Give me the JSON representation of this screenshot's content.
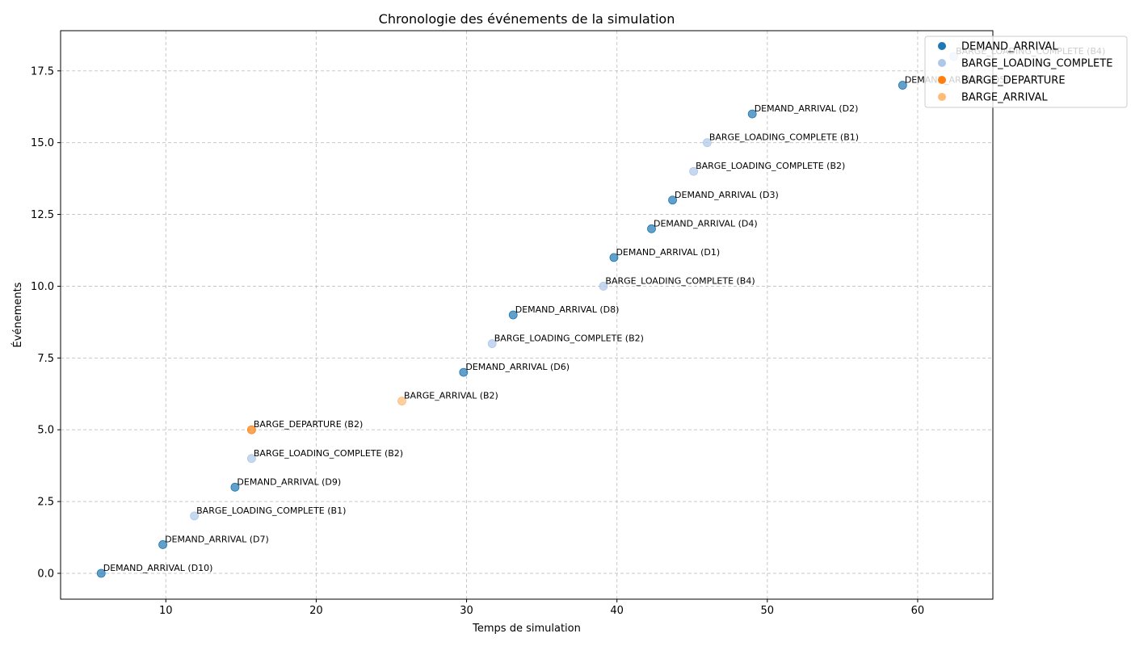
{
  "chart_data": {
    "type": "scatter",
    "title": "Chronologie des événements de la simulation",
    "xlabel": "Temps de simulation",
    "ylabel": "Événements",
    "xlim": [
      3,
      65
    ],
    "ylim": [
      -0.9,
      18.9
    ],
    "xticks": [
      10,
      20,
      30,
      40,
      50,
      60
    ],
    "xtick_labels": [
      "10",
      "20",
      "30",
      "40",
      "50",
      "60"
    ],
    "yticks": [
      0,
      2.5,
      5,
      7.5,
      10,
      12.5,
      15,
      17.5
    ],
    "ytick_labels": [
      "0.0",
      "2.5",
      "5.0",
      "7.5",
      "10.0",
      "12.5",
      "15.0",
      "17.5"
    ],
    "grid": true,
    "legend_position": "top-right",
    "series": [
      {
        "name": "DEMAND_ARRIVAL",
        "color": "#1f77b4"
      },
      {
        "name": "BARGE_LOADING_COMPLETE",
        "color": "#aec7e8"
      },
      {
        "name": "BARGE_DEPARTURE",
        "color": "#ff7f0e"
      },
      {
        "name": "BARGE_ARRIVAL",
        "color": "#ffbb78"
      }
    ],
    "points": [
      {
        "x": 5.7,
        "y": 0,
        "series": "DEMAND_ARRIVAL",
        "label": "DEMAND_ARRIVAL (D10)"
      },
      {
        "x": 9.8,
        "y": 1,
        "series": "DEMAND_ARRIVAL",
        "label": "DEMAND_ARRIVAL (D7)"
      },
      {
        "x": 11.9,
        "y": 2,
        "series": "BARGE_LOADING_COMPLETE",
        "label": "BARGE_LOADING_COMPLETE (B1)"
      },
      {
        "x": 14.6,
        "y": 3,
        "series": "DEMAND_ARRIVAL",
        "label": "DEMAND_ARRIVAL (D9)"
      },
      {
        "x": 15.7,
        "y": 4,
        "series": "BARGE_LOADING_COMPLETE",
        "label": "BARGE_LOADING_COMPLETE (B2)"
      },
      {
        "x": 15.7,
        "y": 5,
        "series": "BARGE_DEPARTURE",
        "label": "BARGE_DEPARTURE (B2)"
      },
      {
        "x": 25.7,
        "y": 6,
        "series": "BARGE_ARRIVAL",
        "label": "BARGE_ARRIVAL (B2)"
      },
      {
        "x": 29.8,
        "y": 7,
        "series": "DEMAND_ARRIVAL",
        "label": "DEMAND_ARRIVAL (D6)"
      },
      {
        "x": 31.7,
        "y": 8,
        "series": "BARGE_LOADING_COMPLETE",
        "label": "BARGE_LOADING_COMPLETE (B2)"
      },
      {
        "x": 33.1,
        "y": 9,
        "series": "DEMAND_ARRIVAL",
        "label": "DEMAND_ARRIVAL (D8)"
      },
      {
        "x": 39.1,
        "y": 10,
        "series": "BARGE_LOADING_COMPLETE",
        "label": "BARGE_LOADING_COMPLETE (B4)"
      },
      {
        "x": 39.8,
        "y": 11,
        "series": "DEMAND_ARRIVAL",
        "label": "DEMAND_ARRIVAL (D1)"
      },
      {
        "x": 42.3,
        "y": 12,
        "series": "DEMAND_ARRIVAL",
        "label": "DEMAND_ARRIVAL (D4)"
      },
      {
        "x": 43.7,
        "y": 13,
        "series": "DEMAND_ARRIVAL",
        "label": "DEMAND_ARRIVAL (D3)"
      },
      {
        "x": 45.1,
        "y": 14,
        "series": "BARGE_LOADING_COMPLETE",
        "label": "BARGE_LOADING_COMPLETE (B2)"
      },
      {
        "x": 46.0,
        "y": 15,
        "series": "BARGE_LOADING_COMPLETE",
        "label": "BARGE_LOADING_COMPLETE (B1)"
      },
      {
        "x": 49.0,
        "y": 16,
        "series": "DEMAND_ARRIVAL",
        "label": "DEMAND_ARRIVAL (D2)"
      },
      {
        "x": 59.0,
        "y": 17,
        "series": "DEMAND_ARRIVAL",
        "label": "DEMAND_ARRIVAL (D5)"
      },
      {
        "x": 62.4,
        "y": 18,
        "series": "BARGE_LOADING_COMPLETE",
        "label": "BARGE_LOADING_COMPLETE (B4)"
      }
    ]
  }
}
